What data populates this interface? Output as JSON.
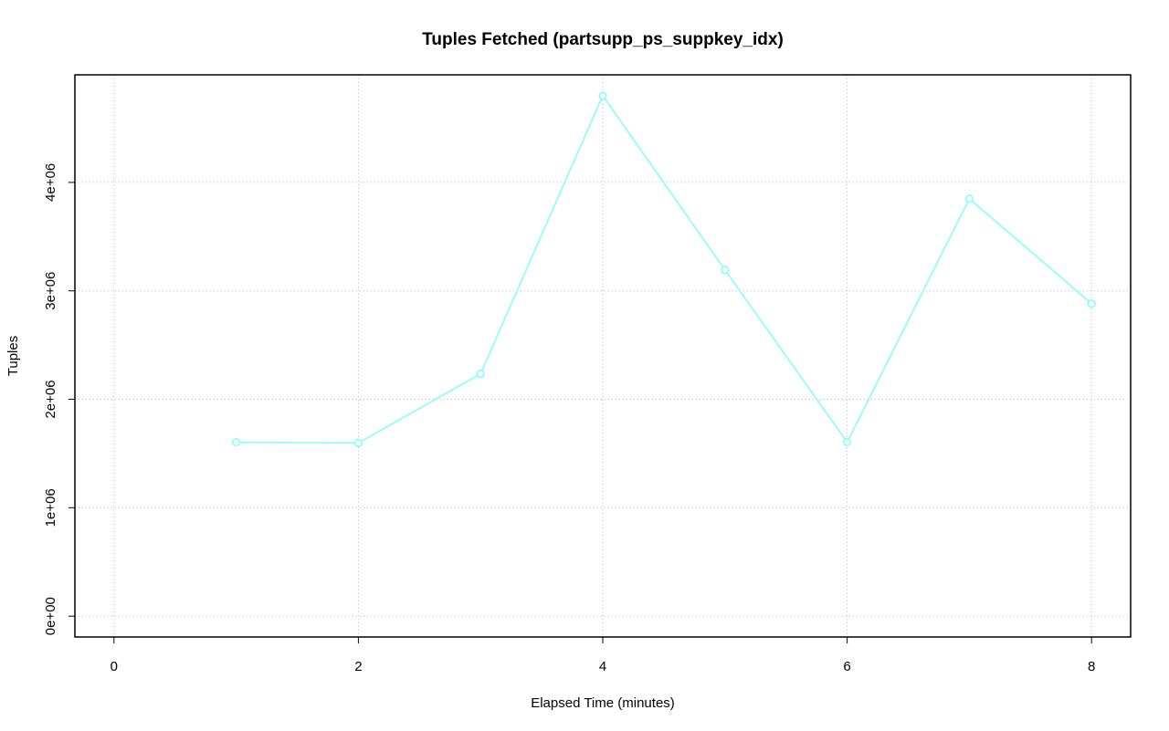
{
  "chart_data": {
    "type": "line",
    "title": "Tuples Fetched (partsupp_ps_suppkey_idx)",
    "x_label": "Elapsed Time (minutes)",
    "y_label": "Tuples",
    "x": [
      1,
      2,
      3,
      4,
      5,
      6,
      7,
      8
    ],
    "series": [
      {
        "name": "Tuples",
        "color": "#7fffff",
        "values": [
          1605000,
          1597000,
          2235000,
          4800000,
          3193000,
          1605000,
          3849000,
          2882000
        ]
      }
    ],
    "xlim": [
      -0.32,
      8.32
    ],
    "ylim": [
      -192000,
      4992000
    ],
    "xticks": [
      0,
      2,
      4,
      6,
      8
    ],
    "yticks": [
      {
        "value": 0,
        "label": "0e+00"
      },
      {
        "value": 1000000,
        "label": "1e+06"
      },
      {
        "value": 2000000,
        "label": "2e+06"
      },
      {
        "value": 3000000,
        "label": "3e+06"
      },
      {
        "value": 4000000,
        "label": "4e+06"
      }
    ],
    "grid": true
  }
}
